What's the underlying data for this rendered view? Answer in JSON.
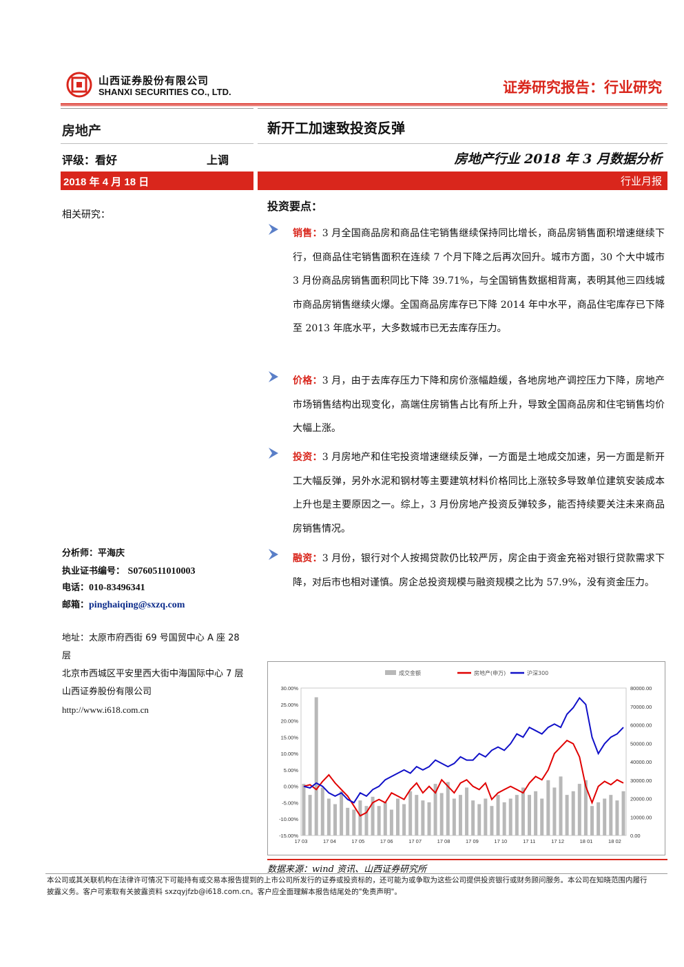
{
  "header": {
    "company_cn": "山西证券股份有限公司",
    "company_en": "SHANXI SECURITIES CO., LTD.",
    "report_type": "证券研究报告：行业研究",
    "logo_icon": "shanxi-securities-logo",
    "accent_color": "#d9261c"
  },
  "left": {
    "sector": "房地产",
    "rating": "评级：看好",
    "rating_change": "上调",
    "date": "2018 年 4 月 18 日",
    "related": "相关研究：",
    "analyst_label": "分析师：",
    "analyst_name": "平海庆",
    "cert_label": "执业证书编号：",
    "cert_value": "S0760511010003",
    "phone_label": "电话：",
    "phone_value": "010-83496341",
    "email_label": "邮箱：",
    "email_value": "pinghaiqing@sxzq.com",
    "address_1": "地址：太原市府西街 69 号国贸中心 A 座 28 层",
    "address_2": "北京市西城区平安里西大街中海国际中心 7 层",
    "company_line": "山西证券股份有限公司",
    "website": "http://www.i618.com.cn"
  },
  "right": {
    "title": "新开工加速致投资反弹",
    "subtitle": "房地产行业 2018 年 3 月数据分析",
    "report_kind": "行业月报",
    "key_points": "投资要点：",
    "points": [
      {
        "keyword": "销售：",
        "text": "3 月全国商品房和商品住宅销售继续保持同比增长，商品房销售面积增速继续下行，但商品住宅销售面积在连续 7 个月下降之后再次回升。城市方面，30 个大中城市 3 月份商品房销售面积同比下降 39.71%，与全国销售数据相背离，表明其他三四线城市商品房销售继续火爆。全国商品房库存已下降 2014 年中水平，商品住宅库存已下降至 2013 年底水平，大多数城市已无去库存压力。"
      },
      {
        "keyword": "价格：",
        "text": "3 月，由于去库存压力下降和房价涨幅趋缓，各地房地产调控压力下降，房地产市场销售结构出现变化，高端住房销售占比有所上升，导致全国商品房和住宅销售均价大幅上涨。"
      },
      {
        "keyword": "投资：",
        "text": "3 月房地产和住宅投资增速继续反弹，一方面是土地成交加速，另一方面是新开工大幅反弹，另外水泥和钢材等主要建筑材料价格同比上涨较多导致单位建筑安装成本上升也是主要原因之一。综上，3 月份房地产投资反弹较多，能否持续要关注未来商品房销售情况。"
      },
      {
        "keyword": "融资：",
        "text": "3 月份，银行对个人按揭贷款仍比较严厉，房企由于资金充裕对银行贷款需求下降，对后市也相对谨慎。房企总投资规模与融资规模之比为 57.9%，没有资金压力。"
      }
    ],
    "source": "数据来源：wind 资讯、山西证券研究所"
  },
  "chart_data": {
    "type": "line",
    "legend": [
      "成交金额",
      "房地产(申万)",
      "沪深300"
    ],
    "legend_position": "top",
    "series_colors": [
      "#b8b8b8",
      "#e00000",
      "#1010c8"
    ],
    "x_ticks": [
      "17 03",
      "17 04",
      "17 05",
      "17 06",
      "17 07",
      "17 08",
      "17 09",
      "17 10",
      "17 11",
      "17 12",
      "18 01",
      "18 02"
    ],
    "y_left_ticks": [
      "30.00%",
      "25.00%",
      "20.00%",
      "15.00%",
      "10.00%",
      "5.00%",
      "0.00%",
      "-5.00%",
      "-10.00%",
      "-15.00%"
    ],
    "y_left_range": [
      -15,
      30
    ],
    "y_right_ticks": [
      "80000.00",
      "70000.00",
      "60000.00",
      "50000.00",
      "40000.00",
      "30000.00",
      "20000.00",
      "10000.00",
      "0.00"
    ],
    "y_right_range": [
      0,
      80000
    ],
    "series": [
      {
        "name": "房地产(申万)",
        "axis": "left",
        "values": [
          0.0,
          0.5,
          -1.0,
          1.5,
          3.5,
          1.0,
          -1.0,
          -3.0,
          -6.0,
          -9.0,
          -8.0,
          -5.0,
          -4.0,
          -5.0,
          -2.0,
          -3.0,
          -4.0,
          -1.0,
          1.0,
          -2.0,
          0.0,
          -2.0,
          2.0,
          0.0,
          -2.0,
          1.0,
          2.0,
          0.0,
          -1.0,
          1.0,
          -4.0,
          -2.0,
          -1.0,
          0.0,
          -1.0,
          -2.0,
          1.0,
          3.0,
          2.0,
          5.0,
          10.0,
          12.0,
          14.0,
          13.0,
          9.0,
          0.0,
          -5.0,
          0.0,
          1.5,
          0.5,
          2.0,
          1.0
        ]
      },
      {
        "name": "沪深300",
        "axis": "left",
        "values": [
          0.0,
          -0.5,
          1.0,
          0.0,
          -2.0,
          -3.0,
          -2.0,
          -4.0,
          -5.0,
          -2.0,
          -3.0,
          -1.0,
          0.0,
          2.0,
          3.0,
          4.0,
          5.0,
          4.0,
          6.0,
          5.0,
          6.0,
          8.0,
          7.0,
          6.0,
          7.0,
          9.0,
          8.0,
          8.0,
          10.0,
          9.0,
          11.0,
          12.0,
          11.0,
          13.0,
          16.0,
          15.0,
          18.0,
          17.0,
          16.0,
          18.0,
          19.0,
          18.0,
          22.0,
          24.0,
          27.0,
          25.0,
          15.0,
          10.0,
          13.0,
          15.0,
          16.0,
          18.0
        ]
      },
      {
        "name": "成交金额",
        "axis": "right",
        "values": [
          28000,
          22000,
          75000,
          26000,
          20000,
          17000,
          24000,
          15000,
          14000,
          19000,
          16000,
          21000,
          16000,
          18000,
          14000,
          20000,
          17000,
          24000,
          22000,
          19000,
          18000,
          28000,
          23000,
          29000,
          20000,
          22000,
          26000,
          19000,
          17000,
          20000,
          16000,
          22000,
          18000,
          20000,
          22000,
          26000,
          22000,
          24000,
          20000,
          30000,
          26000,
          32000,
          22000,
          24000,
          28000,
          30000,
          16000,
          18000,
          20000,
          22000,
          19000,
          24000
        ]
      }
    ]
  },
  "footer": {
    "disclaimer": "本公司或其关联机构在法律许可情况下可能持有或交易本报告提到的上市公司所发行的证券或投资标的，还可能为或争取为这些公司提供投资银行或财务顾问服务。本公司在知晓范围内履行披露义务。客户可索取有关披露资料 sxzqyjfzb@i618.com.cn。客户应全面理解本报告结尾处的\"免责声明\"。"
  }
}
